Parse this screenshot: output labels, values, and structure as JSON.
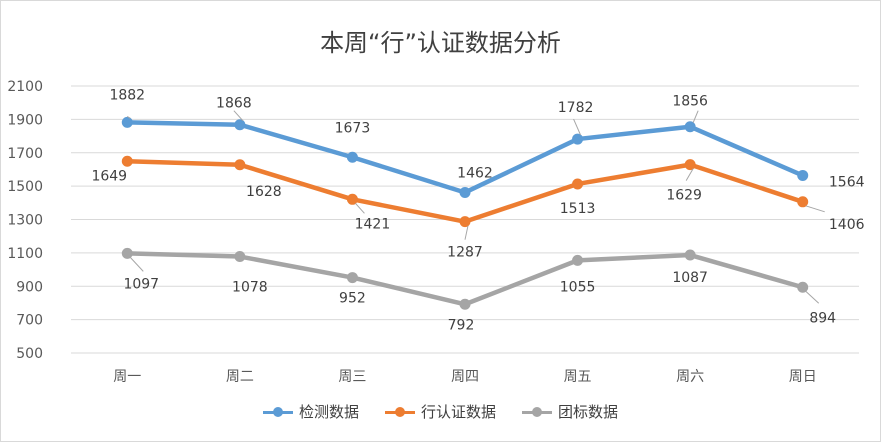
{
  "chart_data": {
    "type": "line",
    "title": "本周“行”认证数据分析",
    "categories": [
      "周一",
      "周二",
      "周三",
      "周四",
      "周五",
      "周六",
      "周日"
    ],
    "y_ticks": [
      "500",
      "700",
      "900",
      "1100",
      "1300",
      "1500",
      "1700",
      "1900",
      "2100"
    ],
    "ylim": [
      500,
      2100
    ],
    "grid": true,
    "legend_position": "bottom",
    "series": [
      {
        "name": "检测数据",
        "color": "#5b9bd5",
        "values": [
          1882,
          1868,
          1673,
          1462,
          1782,
          1856,
          1564
        ]
      },
      {
        "name": "行认证数据",
        "color": "#ed7d31",
        "values": [
          1649,
          1628,
          1421,
          1287,
          1513,
          1629,
          1406
        ]
      },
      {
        "name": "团标数据",
        "color": "#a5a5a5",
        "values": [
          1097,
          1078,
          952,
          792,
          1055,
          1087,
          894
        ]
      }
    ]
  }
}
